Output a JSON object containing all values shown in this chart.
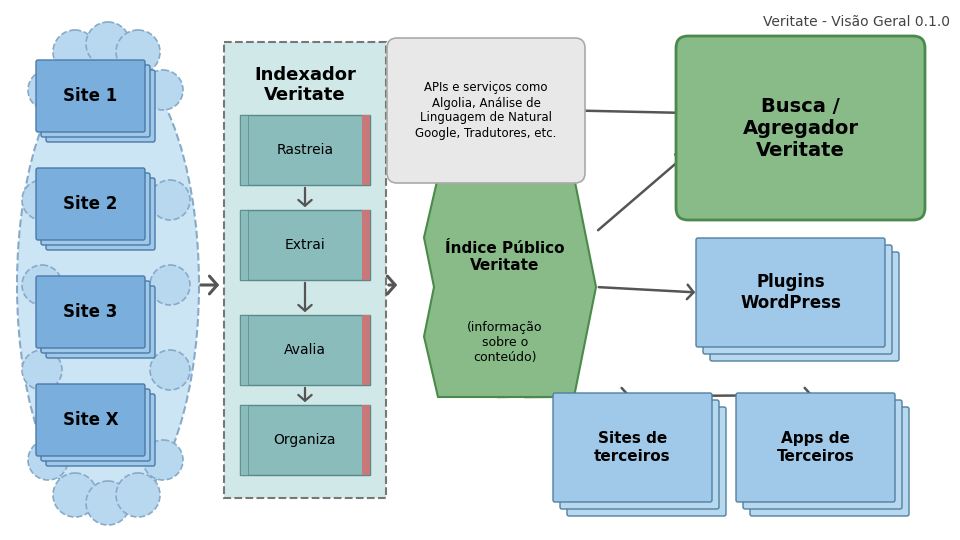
{
  "title": "Veritate - Visão Geral 0.1.0",
  "sites": [
    "Site 1",
    "Site 2",
    "Site 3",
    "Site X"
  ],
  "indexer_title": "Indexador\nVeritate",
  "indexer_steps": [
    "Rastreia",
    "Extrai",
    "Avalia",
    "Organiza"
  ],
  "indice_title": "Índice Público\nVeritate",
  "indice_subtitle": "(informação\nsobre o\nconteúdo)",
  "apis_text": "APIs e serviços como\nAlgolia, Análise de\nLinguagem de Natural\nGoogle, Tradutores, etc.",
  "busca_title": "Busca /\nAgregador\nVeritate",
  "plugins_title": "Plugins\nWordPress",
  "sites_terceiros": "Sites de\nterceiros",
  "apps_terceiros": "Apps de\nTerceiros",
  "color_oval_fill": "#cce5f5",
  "color_oval_edge": "#88aac8",
  "color_oval_bump": "#b8d8f0",
  "color_site_front": "#7aaedc",
  "color_site_back": "#a0c8e8",
  "color_site_edge": "#4a7aaa",
  "color_indexer_bg": "#d0e8e8",
  "color_step_fill": "#8abcbc",
  "color_step_edge": "#5a8888",
  "color_step_lbar": "#8abcbc",
  "color_step_rbar": "#c87878",
  "color_green_fill": "#88bb88",
  "color_green_edge": "#4a8a4a",
  "color_apis_fill": "#e8e8e8",
  "color_apis_edge": "#aaaaaa",
  "color_plugin_fill": "#a0c8e8",
  "color_plugin_back": "#b8d8f0",
  "color_plugin_edge": "#5080a0",
  "color_arrow": "#555555",
  "bg": "#ffffff",
  "title_color": "#444444"
}
